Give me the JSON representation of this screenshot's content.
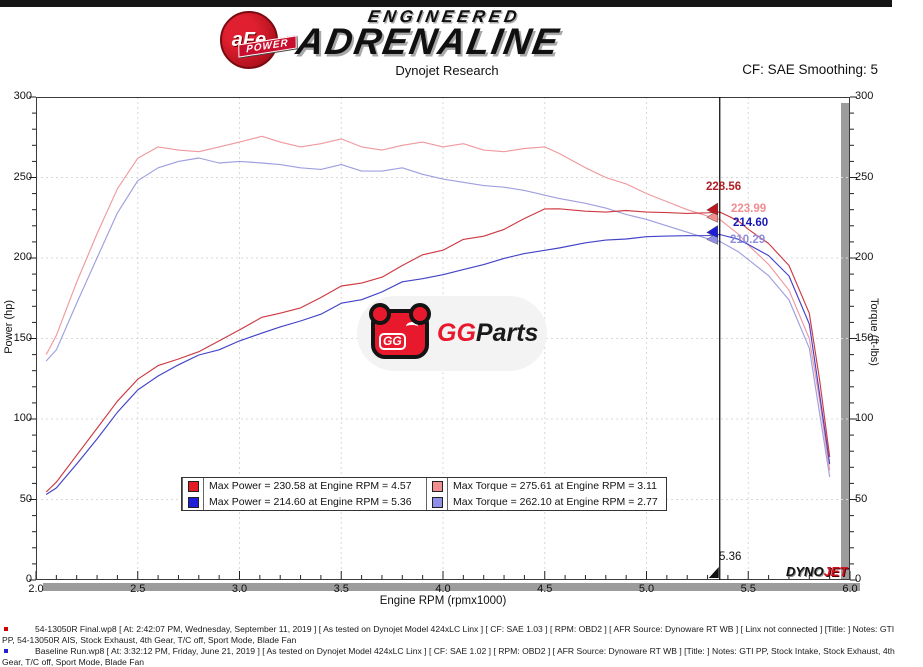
{
  "header": {
    "top_bar_color": "#161616",
    "logo": {
      "badge_text": "aFe",
      "badge_sub": "POWER",
      "title_line1": "ENGINEERED",
      "title_line2": "ADRENALINE"
    },
    "subtitle": "Dynojet Research",
    "smoothing_label": "CF: SAE Smoothing: 5"
  },
  "chart_data": {
    "type": "line",
    "xlabel": "Engine RPM (rpmx1000)",
    "ylabel_left": "Power (hp)",
    "ylabel_right": "Torque (ft-lbs)",
    "xlim": [
      2.0,
      6.0
    ],
    "ylim": [
      0,
      300
    ],
    "x_ticks": [
      2.0,
      2.5,
      3.0,
      3.5,
      4.0,
      4.5,
      5.0,
      5.5,
      6.0
    ],
    "x_tick_labels": [
      "2.0",
      "2.5",
      "3.0",
      "3.5",
      "4.0",
      "4.5",
      "5.0",
      "5.5",
      "6.0"
    ],
    "y_ticks": [
      0,
      50,
      100,
      150,
      200,
      250,
      300
    ],
    "y_tick_labels": [
      "0",
      "50",
      "100",
      "150",
      "200",
      "250",
      "300"
    ],
    "x_minor_step": 0.1,
    "y_minor_step": 10,
    "x_grid": [
      2.5,
      3.0,
      3.5,
      4.0,
      4.5,
      5.0,
      5.5
    ],
    "y_grid": [
      50,
      100,
      150,
      200,
      250
    ],
    "grid": "dashed",
    "x": [
      2.05,
      2.1,
      2.2,
      2.3,
      2.4,
      2.5,
      2.6,
      2.7,
      2.8,
      2.9,
      3.0,
      3.11,
      3.2,
      3.3,
      3.4,
      3.5,
      3.6,
      3.7,
      3.8,
      3.9,
      4.0,
      4.1,
      4.2,
      4.3,
      4.4,
      4.5,
      4.57,
      4.7,
      4.8,
      4.9,
      5.0,
      5.1,
      5.2,
      5.3,
      5.36,
      5.45,
      5.5,
      5.6,
      5.7,
      5.8,
      5.85,
      5.9
    ],
    "series": [
      {
        "id": "torque-baseline",
        "name": "Torque Baseline Run (ft-lbs)",
        "axis": "right",
        "color": "#9f9fe0",
        "values": [
          136,
          143,
          172,
          200,
          228,
          248,
          256,
          260,
          262.1,
          259,
          260,
          259,
          258,
          256,
          255,
          258,
          254,
          254,
          256,
          252,
          249,
          247,
          245,
          244,
          242,
          239,
          237,
          234,
          231,
          227,
          224,
          220,
          216,
          212,
          210.29,
          204,
          199,
          189,
          174,
          144,
          104,
          64
        ]
      },
      {
        "id": "torque-final",
        "name": "Torque 54-13050R Final (ft-lbs)",
        "axis": "right",
        "color": "#f0999e",
        "values": [
          140,
          152,
          185,
          215,
          243,
          262,
          269,
          267,
          266,
          269,
          272,
          275.61,
          272,
          269,
          271,
          274,
          269,
          267,
          270,
          272,
          269,
          271,
          267,
          266,
          268,
          269,
          265,
          256,
          250,
          246,
          240,
          235,
          230,
          226,
          223.99,
          215,
          208,
          196,
          180,
          150,
          112,
          68
        ]
      },
      {
        "id": "power-baseline",
        "name": "Power Baseline Run (hp)",
        "axis": "left",
        "color": "#4343c8",
        "values": [
          53.08,
          57.18,
          72.05,
          87.59,
          104.19,
          118.05,
          126.73,
          133.66,
          139.73,
          143.01,
          148.52,
          153.37,
          157.2,
          160.85,
          165.08,
          171.93,
          174.1,
          178.94,
          185.22,
          187.13,
          189.64,
          192.82,
          195.93,
          199.77,
          202.74,
          204.78,
          206.22,
          209.41,
          211.12,
          211.79,
          213.25,
          213.63,
          213.86,
          213.94,
          214.6,
          211.69,
          208.4,
          201.52,
          188.84,
          159.03,
          115.84,
          71.9
        ]
      },
      {
        "id": "power-final",
        "name": "Power 54-13050R Final (hp)",
        "axis": "left",
        "color": "#cd3a42",
        "values": [
          54.64,
          60.78,
          77.49,
          94.15,
          111.03,
          124.71,
          133.17,
          137.26,
          141.81,
          148.53,
          155.37,
          163.19,
          165.73,
          169.02,
          175.44,
          182.6,
          184.39,
          188.1,
          195.35,
          201.98,
          204.87,
          211.56,
          213.52,
          217.78,
          224.52,
          230.48,
          230.58,
          229.09,
          228.48,
          229.51,
          228.48,
          228.2,
          227.72,
          228.07,
          228.56,
          223.11,
          217.82,
          208.99,
          195.35,
          165.65,
          124.75,
          76.39
        ]
      }
    ],
    "legend": [
      {
        "swatch": "#e31b23",
        "label": "Max Power = 230.58 at Engine RPM = 4.57"
      },
      {
        "swatch": "#f08f8f",
        "label": "Max Torque = 275.61 at Engine RPM = 3.11"
      },
      {
        "swatch": "#1f1fd9",
        "label": "Max Power = 214.60 at Engine RPM = 5.36"
      },
      {
        "swatch": "#8f8fe8",
        "label": "Max Torque = 262.10 at Engine RPM = 2.77"
      }
    ],
    "legend_position": "bottom-center-inside",
    "cursor": {
      "rpm": 5.36,
      "x_label": "5.36",
      "markers": [
        {
          "value": 228.56,
          "label": "228.56",
          "color": "#c01820"
        },
        {
          "value": 223.99,
          "label": "223.99",
          "color": "#f08f8f"
        },
        {
          "value": 214.6,
          "label": "214.60",
          "color": "#1f1fd9"
        },
        {
          "value": 210.29,
          "label": "210.29",
          "color": "#8f8fe8"
        }
      ]
    }
  },
  "watermark": {
    "mascot_text": "GG",
    "brand_red": "GG",
    "brand_black": "Parts"
  },
  "dynojet_logo": {
    "part1": "DYNO",
    "part2": "JET"
  },
  "footer": {
    "entries": [
      {
        "bullet_color": "#cc0000",
        "indent": true,
        "text": "54-13050R Final.wp8 [ At: 2:42:07 PM, Wednesday, September 11, 2019 ] [ As tested on Dynojet Model 424xLC Linx ] [ CF: SAE 1.03 ] [ RPM: OBD2 ] [ AFR Source: Dynoware RT WB ] [ Linx not connected ] [Title: ]  Notes: GTI"
      },
      {
        "bullet_color": null,
        "indent": false,
        "text": "PP, 54-13050R AIS, Stock Exhaust, 4th Gear, T/C off, Sport Mode, Blade Fan"
      },
      {
        "bullet_color": "#2222cc",
        "indent": true,
        "text": "Baseline Run.wp8 [ At: 3:32:12 PM, Friday, June 21, 2019 ] [ As tested on Dynojet Model 424xLC Linx ] [ CF: SAE 1.02 ] [ RPM: OBD2 ] [ AFR Source: Dynoware RT WB ] [Title: ]  Notes: GTI PP, Stock Intake, Stock Exhaust, 4th"
      },
      {
        "bullet_color": null,
        "indent": false,
        "text": "Gear, T/C off, Sport Mode, Blade Fan"
      }
    ]
  }
}
